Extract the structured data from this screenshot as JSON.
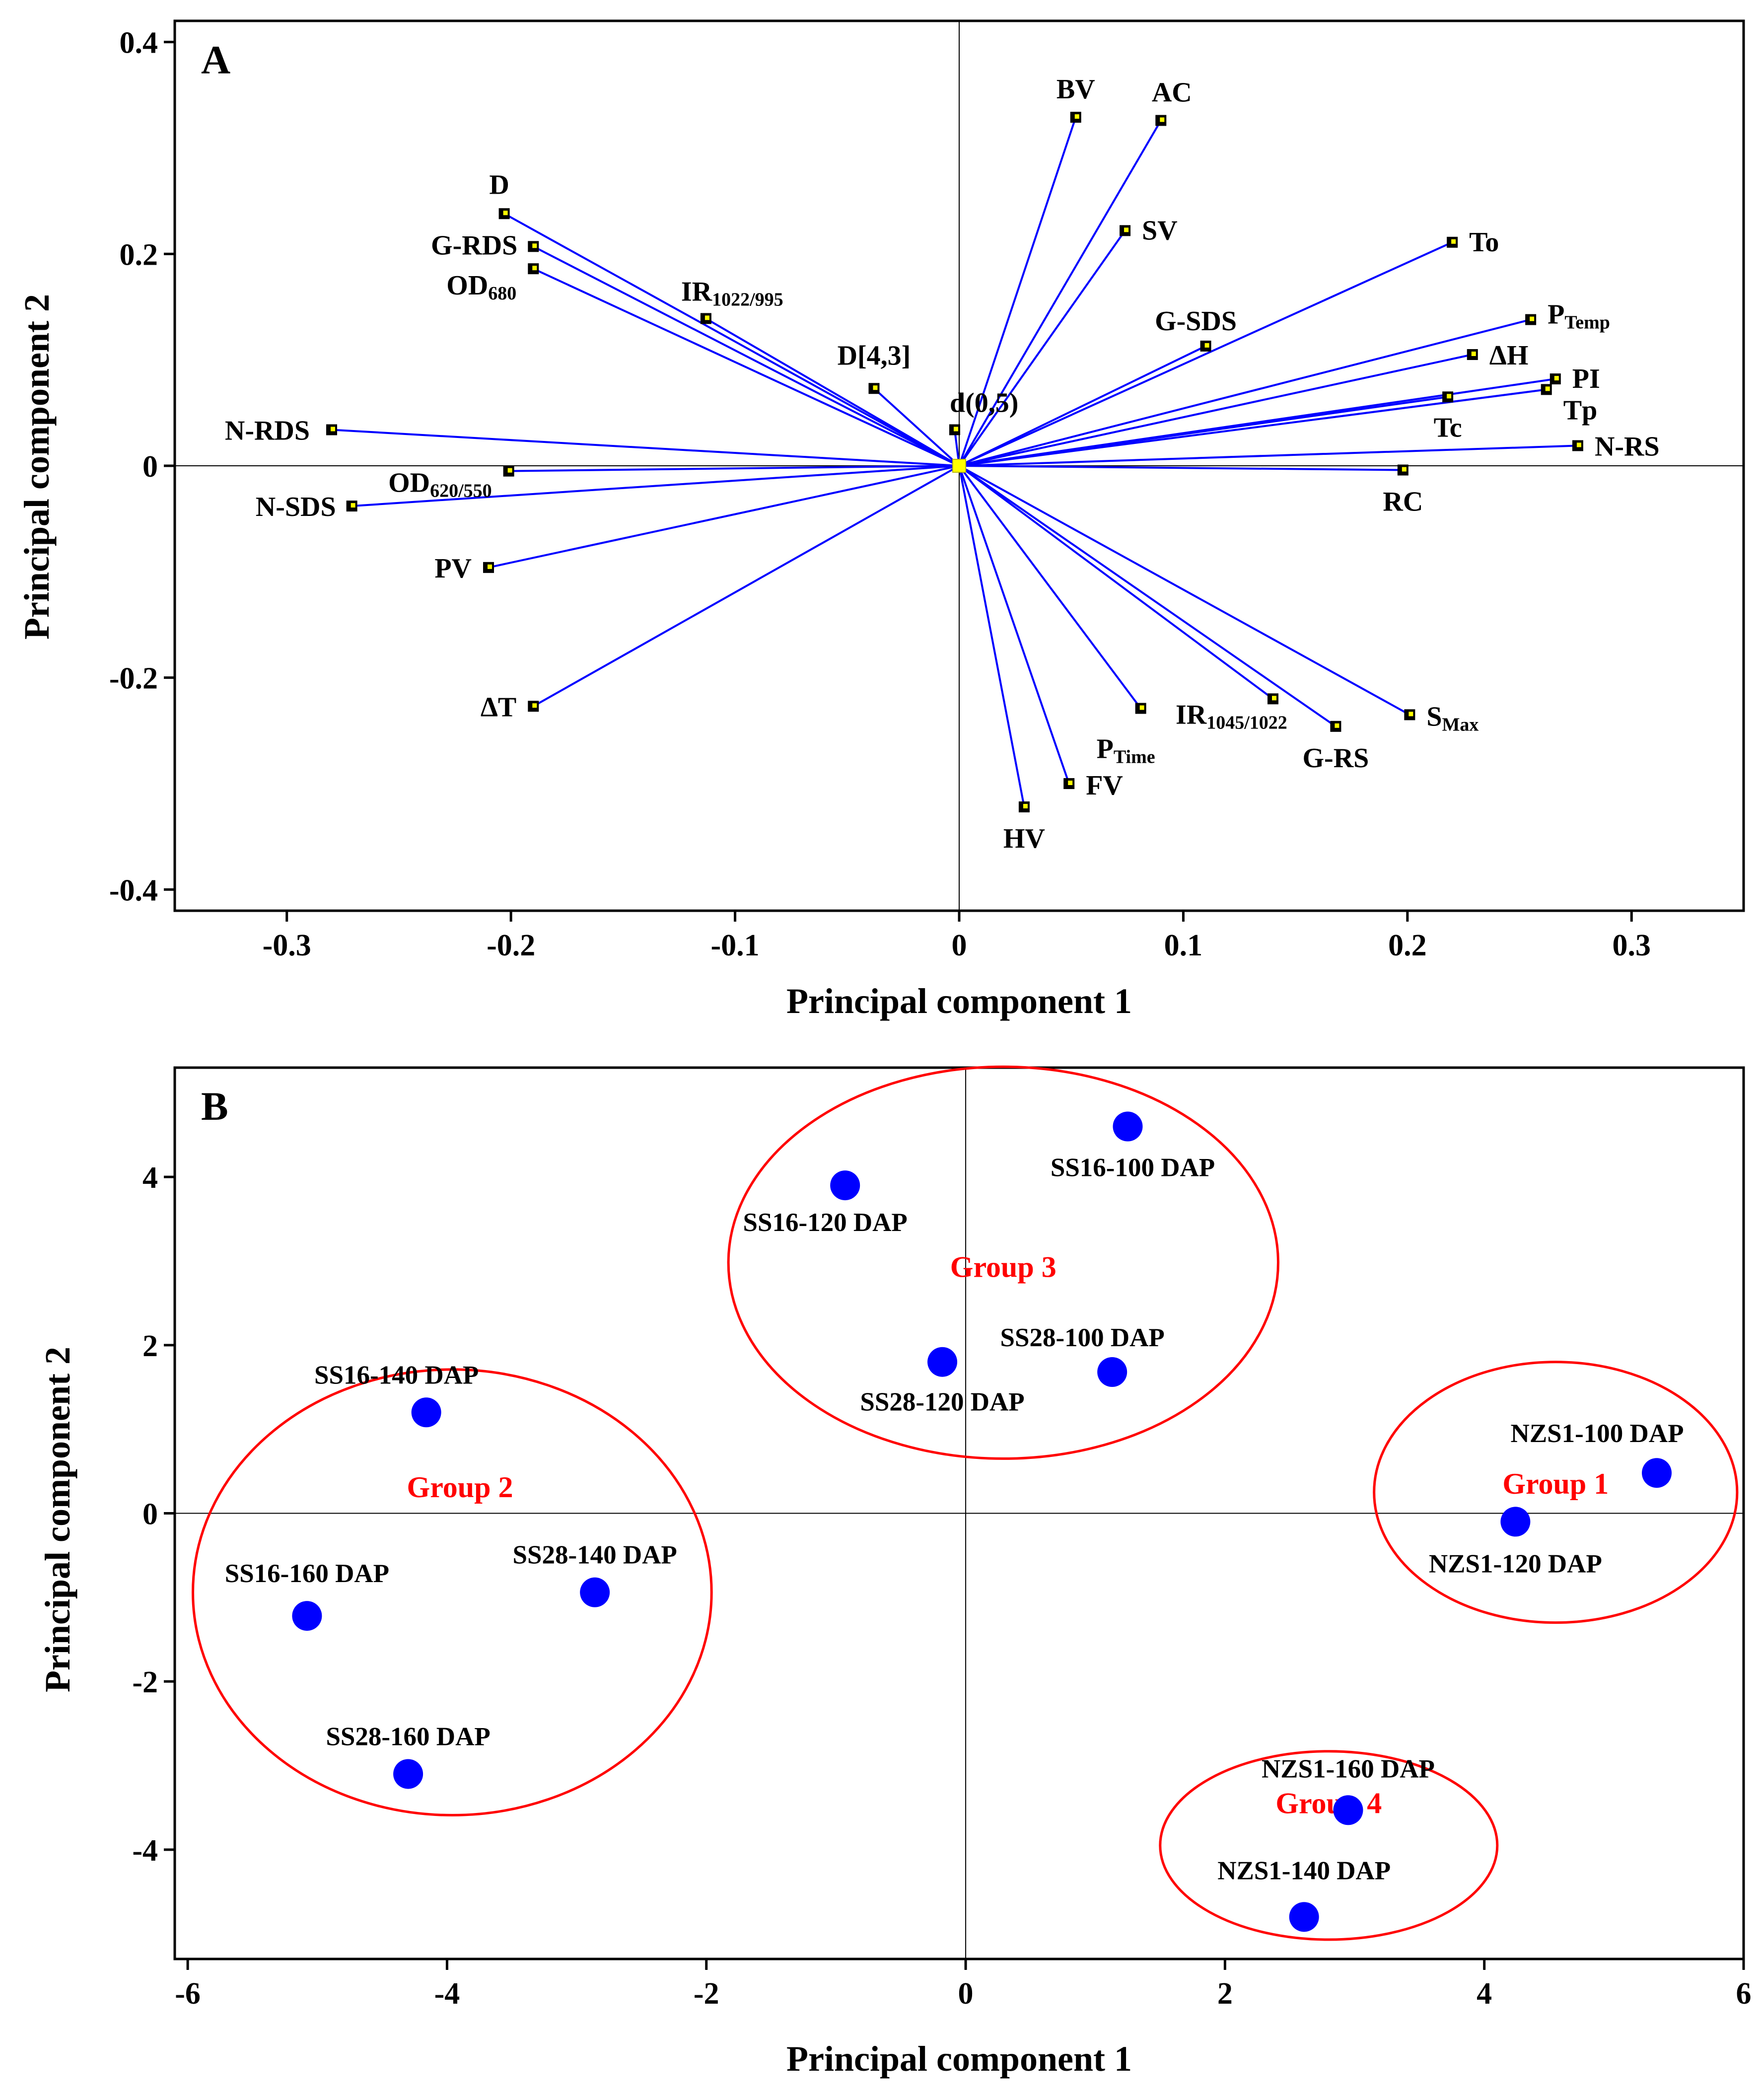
{
  "chart_data": [
    {
      "type": "scatter",
      "panel": "A",
      "xlabel": "Principal component 1",
      "ylabel": "Principal component 2",
      "xlim": [
        -0.35,
        0.35
      ],
      "ylim": [
        -0.42,
        0.42
      ],
      "xticks": [
        -0.3,
        -0.2,
        -0.1,
        0,
        0.1,
        0.2,
        0.3
      ],
      "xtick_labels": [
        "-0.3",
        "-0.2",
        "-0.1",
        "0",
        "0.1",
        "0.2",
        "0.3"
      ],
      "yticks": [
        -0.4,
        -0.2,
        0,
        0.2,
        0.4
      ],
      "ytick_labels": [
        "-0.4",
        "-0.2",
        "0",
        "0.2",
        "0.4"
      ],
      "grid": false,
      "reference_lines": true,
      "line_color": "#0000ff",
      "marker_color": "#ffff00",
      "points": [
        {
          "label": "BV",
          "sub": "",
          "x": 0.052,
          "y": 0.329
        },
        {
          "label": "AC",
          "sub": "",
          "x": 0.09,
          "y": 0.326
        },
        {
          "label": "SV",
          "sub": "",
          "x": 0.074,
          "y": 0.222
        },
        {
          "label": "D",
          "sub": "",
          "x": -0.203,
          "y": 0.238
        },
        {
          "label": "G-RDS",
          "sub": "",
          "x": -0.19,
          "y": 0.207
        },
        {
          "label": "OD",
          "sub": "680",
          "x": -0.19,
          "y": 0.186
        },
        {
          "label": "IR",
          "sub": "1022/995",
          "x": -0.113,
          "y": 0.139
        },
        {
          "label": "To",
          "sub": "",
          "x": 0.22,
          "y": 0.211
        },
        {
          "label": "P",
          "sub": "Temp",
          "x": 0.255,
          "y": 0.138
        },
        {
          "label": "G-SDS",
          "sub": "",
          "x": 0.11,
          "y": 0.113
        },
        {
          "label": "ΔH",
          "sub": "",
          "x": 0.229,
          "y": 0.105
        },
        {
          "label": "PI",
          "sub": "",
          "x": 0.266,
          "y": 0.082
        },
        {
          "label": "Tp",
          "sub": "",
          "x": 0.262,
          "y": 0.072
        },
        {
          "label": "Tc",
          "sub": "",
          "x": 0.218,
          "y": 0.065
        },
        {
          "label": "D[4,3]",
          "sub": "",
          "x": -0.038,
          "y": 0.073
        },
        {
          "label": "d(0,5)",
          "sub": "",
          "x": -0.002,
          "y": 0.034
        },
        {
          "label": "N-RDS",
          "sub": "",
          "x": -0.28,
          "y": 0.034
        },
        {
          "label": "N-RS",
          "sub": "",
          "x": 0.276,
          "y": 0.019
        },
        {
          "label": "OD",
          "sub": "620/550",
          "x": -0.201,
          "y": -0.005
        },
        {
          "label": "RC",
          "sub": "",
          "x": 0.198,
          "y": -0.004
        },
        {
          "label": "N-SDS",
          "sub": "",
          "x": -0.271,
          "y": -0.038
        },
        {
          "label": "PV",
          "sub": "",
          "x": -0.21,
          "y": -0.096
        },
        {
          "label": "ΔT",
          "sub": "",
          "x": -0.19,
          "y": -0.227
        },
        {
          "label": "IR",
          "sub": "1045/1022",
          "x": 0.14,
          "y": -0.22
        },
        {
          "label": "S",
          "sub": "Max",
          "x": 0.201,
          "y": -0.235
        },
        {
          "label": "G-RS",
          "sub": "",
          "x": 0.168,
          "y": -0.246
        },
        {
          "label": "P",
          "sub": "Time",
          "x": 0.081,
          "y": -0.229
        },
        {
          "label": "FV",
          "sub": "",
          "x": 0.049,
          "y": -0.3
        },
        {
          "label": "HV",
          "sub": "",
          "x": 0.029,
          "y": -0.322
        }
      ]
    },
    {
      "type": "scatter",
      "panel": "B",
      "xlabel": "Principal component 1",
      "ylabel": "Principal component 2",
      "xlim": [
        -6.1,
        6.0
      ],
      "ylim": [
        -5.3,
        5.3
      ],
      "xticks": [
        -6,
        -4,
        -2,
        0,
        2,
        4,
        6
      ],
      "xtick_labels": [
        "-6",
        "-4",
        "-2",
        "0",
        "2",
        "4",
        "6"
      ],
      "yticks": [
        -4,
        -2,
        0,
        2,
        4
      ],
      "ytick_labels": [
        "-4",
        "-2",
        "0",
        "2",
        "4"
      ],
      "grid": false,
      "reference_lines": true,
      "point_color": "#0000ff",
      "group_color": "#ff0000",
      "points": [
        {
          "label": "SS16-100 DAP",
          "x": 1.25,
          "y": 4.6
        },
        {
          "label": "SS16-120 DAP",
          "x": -0.93,
          "y": 3.9
        },
        {
          "label": "SS28-100 DAP",
          "x": 1.13,
          "y": 1.68
        },
        {
          "label": "SS28-120 DAP",
          "x": -0.18,
          "y": 1.8
        },
        {
          "label": "SS16-140 DAP",
          "x": -4.16,
          "y": 1.2
        },
        {
          "label": "SS28-140 DAP",
          "x": -2.86,
          "y": -0.94
        },
        {
          "label": "SS16-160 DAP",
          "x": -5.08,
          "y": -1.22
        },
        {
          "label": "SS28-160 DAP",
          "x": -4.3,
          "y": -3.1
        },
        {
          "label": "NZS1-100 DAP",
          "x": 5.33,
          "y": 0.48
        },
        {
          "label": "NZS1-120 DAP",
          "x": 4.24,
          "y": -0.1
        },
        {
          "label": "NZS1-160 DAP",
          "x": 2.95,
          "y": -3.53
        },
        {
          "label": "NZS1-140 DAP",
          "x": 2.61,
          "y": -4.8
        }
      ],
      "groups": [
        {
          "name": "Group 1",
          "cx": 4.55,
          "cy": 0.25,
          "rx": 1.4,
          "ry": 1.55
        },
        {
          "name": "Group 2",
          "cx": -3.96,
          "cy": -0.94,
          "rx": 2.0,
          "ry": 2.65
        },
        {
          "name": "Group 3",
          "cx": 0.29,
          "cy": 2.98,
          "rx": 2.12,
          "ry": 2.33
        },
        {
          "name": "Group 4",
          "cx": 2.8,
          "cy": -3.95,
          "rx": 1.3,
          "ry": 1.12
        }
      ]
    }
  ]
}
